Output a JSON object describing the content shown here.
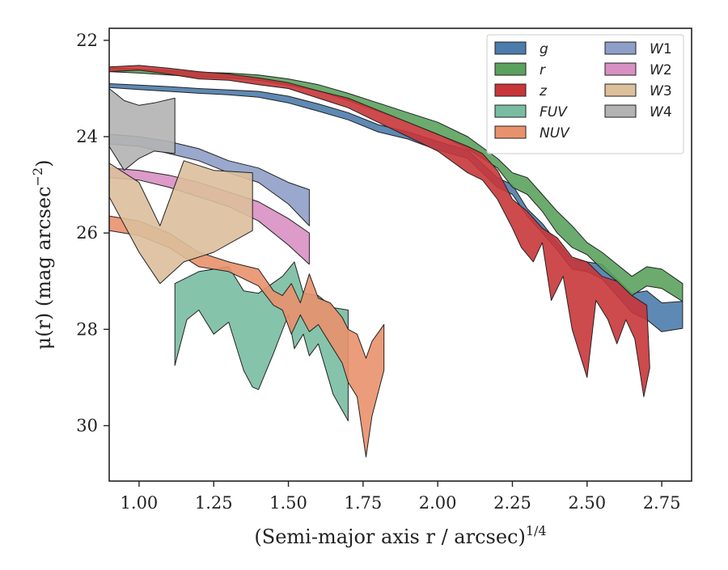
{
  "chart_data": {
    "type": "area",
    "xlabel": "(Semi-major axis r / arcsec)",
    "xlabel_sup": "1/4",
    "ylabel": "μ(r) (mag arcsec",
    "ylabel_sup": "−2",
    "ylabel_close": ")",
    "xlim": [
      0.9,
      2.85
    ],
    "ylim": [
      31.15,
      21.75
    ],
    "y_inverted": true,
    "xticks": [
      1.0,
      1.25,
      1.5,
      1.75,
      2.0,
      2.25,
      2.5,
      2.75
    ],
    "xtick_labels": [
      "1.00",
      "1.25",
      "1.50",
      "1.75",
      "2.00",
      "2.25",
      "2.50",
      "2.75"
    ],
    "yticks": [
      22,
      24,
      26,
      28,
      30
    ],
    "ytick_labels": [
      "22",
      "24",
      "26",
      "28",
      "30"
    ],
    "grid": false,
    "legend": {
      "placement": "top-right",
      "columns": 2
    },
    "series": [
      {
        "name": "g",
        "label_main": "g",
        "label_sub": "",
        "color": "#4c7cac",
        "upper": [
          [
            0.9,
            22.9
          ],
          [
            1.0,
            22.93
          ],
          [
            1.1,
            22.96
          ],
          [
            1.2,
            23.0
          ],
          [
            1.3,
            23.03
          ],
          [
            1.4,
            23.06
          ],
          [
            1.5,
            23.16
          ],
          [
            1.6,
            23.32
          ],
          [
            1.7,
            23.5
          ],
          [
            1.8,
            23.75
          ],
          [
            1.9,
            23.9
          ],
          [
            2.0,
            24.1
          ],
          [
            2.1,
            24.28
          ],
          [
            2.2,
            24.85
          ],
          [
            2.25,
            25.0
          ],
          [
            2.3,
            25.5
          ],
          [
            2.35,
            25.8
          ],
          [
            2.4,
            26.2
          ],
          [
            2.45,
            26.55
          ],
          [
            2.5,
            26.6
          ],
          [
            2.55,
            26.65
          ],
          [
            2.6,
            26.95
          ],
          [
            2.65,
            27.25
          ],
          [
            2.7,
            27.2
          ],
          [
            2.75,
            27.45
          ],
          [
            2.82,
            27.42
          ]
        ],
        "lower": [
          [
            0.9,
            22.98
          ],
          [
            1.0,
            23.02
          ],
          [
            1.1,
            23.06
          ],
          [
            1.2,
            23.1
          ],
          [
            1.3,
            23.13
          ],
          [
            1.4,
            23.18
          ],
          [
            1.5,
            23.3
          ],
          [
            1.6,
            23.47
          ],
          [
            1.7,
            23.65
          ],
          [
            1.8,
            23.9
          ],
          [
            1.9,
            24.05
          ],
          [
            2.0,
            24.28
          ],
          [
            2.1,
            24.45
          ],
          [
            2.2,
            25.05
          ],
          [
            2.25,
            25.2
          ],
          [
            2.3,
            25.65
          ],
          [
            2.35,
            26.0
          ],
          [
            2.4,
            26.35
          ],
          [
            2.45,
            26.75
          ],
          [
            2.5,
            26.8
          ],
          [
            2.55,
            26.95
          ],
          [
            2.6,
            27.3
          ],
          [
            2.65,
            27.65
          ],
          [
            2.7,
            27.8
          ],
          [
            2.75,
            28.05
          ],
          [
            2.82,
            27.98
          ]
        ]
      },
      {
        "name": "r",
        "label_main": "r",
        "label_sub": "",
        "color": "#5ba25e",
        "upper": [
          [
            0.9,
            22.57
          ],
          [
            1.0,
            22.6
          ],
          [
            1.1,
            22.63
          ],
          [
            1.2,
            22.66
          ],
          [
            1.3,
            22.68
          ],
          [
            1.4,
            22.72
          ],
          [
            1.5,
            22.8
          ],
          [
            1.6,
            22.92
          ],
          [
            1.7,
            23.1
          ],
          [
            1.8,
            23.3
          ],
          [
            1.9,
            23.5
          ],
          [
            2.0,
            23.7
          ],
          [
            2.1,
            24.0
          ],
          [
            2.2,
            24.45
          ],
          [
            2.25,
            24.75
          ],
          [
            2.3,
            24.85
          ],
          [
            2.35,
            25.2
          ],
          [
            2.4,
            25.55
          ],
          [
            2.45,
            25.85
          ],
          [
            2.5,
            26.2
          ],
          [
            2.55,
            26.4
          ],
          [
            2.6,
            26.65
          ],
          [
            2.65,
            26.9
          ],
          [
            2.7,
            26.7
          ],
          [
            2.75,
            26.75
          ],
          [
            2.82,
            27.05
          ]
        ],
        "lower": [
          [
            0.9,
            22.65
          ],
          [
            1.0,
            22.68
          ],
          [
            1.1,
            22.72
          ],
          [
            1.2,
            22.76
          ],
          [
            1.3,
            22.78
          ],
          [
            1.4,
            22.83
          ],
          [
            1.5,
            22.93
          ],
          [
            1.6,
            23.05
          ],
          [
            1.7,
            23.25
          ],
          [
            1.8,
            23.47
          ],
          [
            1.9,
            23.7
          ],
          [
            2.0,
            23.95
          ],
          [
            2.1,
            24.25
          ],
          [
            2.2,
            24.65
          ],
          [
            2.25,
            25.05
          ],
          [
            2.3,
            25.2
          ],
          [
            2.35,
            25.55
          ],
          [
            2.4,
            26.0
          ],
          [
            2.45,
            26.3
          ],
          [
            2.5,
            26.45
          ],
          [
            2.55,
            26.75
          ],
          [
            2.6,
            27.0
          ],
          [
            2.65,
            27.3
          ],
          [
            2.7,
            27.1
          ],
          [
            2.75,
            27.15
          ],
          [
            2.82,
            27.42
          ]
        ]
      },
      {
        "name": "z",
        "label_main": "z",
        "label_sub": "",
        "color": "#c8363a",
        "upper": [
          [
            0.9,
            22.55
          ],
          [
            1.0,
            22.52
          ],
          [
            1.1,
            22.58
          ],
          [
            1.2,
            22.65
          ],
          [
            1.3,
            22.7
          ],
          [
            1.4,
            22.78
          ],
          [
            1.5,
            22.88
          ],
          [
            1.6,
            23.05
          ],
          [
            1.7,
            23.2
          ],
          [
            1.8,
            23.45
          ],
          [
            1.9,
            23.7
          ],
          [
            2.0,
            23.95
          ],
          [
            2.1,
            24.2
          ],
          [
            2.15,
            24.35
          ],
          [
            2.2,
            24.7
          ],
          [
            2.25,
            25.3
          ],
          [
            2.3,
            25.55
          ],
          [
            2.35,
            25.9
          ],
          [
            2.4,
            26.1
          ],
          [
            2.45,
            26.5
          ],
          [
            2.5,
            26.6
          ],
          [
            2.55,
            26.9
          ],
          [
            2.6,
            27.0
          ],
          [
            2.65,
            27.3
          ],
          [
            2.7,
            27.5
          ]
        ],
        "lower": [
          [
            0.9,
            22.65
          ],
          [
            1.0,
            22.62
          ],
          [
            1.1,
            22.7
          ],
          [
            1.2,
            22.8
          ],
          [
            1.3,
            22.83
          ],
          [
            1.4,
            22.92
          ],
          [
            1.5,
            23.0
          ],
          [
            1.6,
            23.2
          ],
          [
            1.7,
            23.4
          ],
          [
            1.8,
            23.7
          ],
          [
            1.9,
            24.0
          ],
          [
            2.0,
            24.3
          ],
          [
            2.1,
            24.75
          ],
          [
            2.15,
            24.9
          ],
          [
            2.2,
            25.3
          ],
          [
            2.25,
            25.9
          ],
          [
            2.28,
            26.3
          ],
          [
            2.32,
            26.6
          ],
          [
            2.35,
            26.2
          ],
          [
            2.38,
            27.4
          ],
          [
            2.42,
            26.9
          ],
          [
            2.45,
            28.0
          ],
          [
            2.48,
            28.6
          ],
          [
            2.5,
            29.0
          ],
          [
            2.53,
            27.4
          ],
          [
            2.57,
            27.8
          ],
          [
            2.6,
            28.3
          ],
          [
            2.63,
            27.8
          ],
          [
            2.66,
            28.2
          ],
          [
            2.69,
            29.4
          ],
          [
            2.71,
            28.8
          ]
        ]
      },
      {
        "name": "FUV",
        "label_main": "FUV",
        "label_sub": "",
        "color": "#79bca2",
        "upper": [
          [
            1.12,
            27.05
          ],
          [
            1.2,
            26.8
          ],
          [
            1.3,
            26.7
          ],
          [
            1.35,
            27.2
          ],
          [
            1.4,
            27.25
          ],
          [
            1.48,
            26.9
          ],
          [
            1.52,
            26.6
          ],
          [
            1.55,
            27.25
          ],
          [
            1.6,
            27.3
          ],
          [
            1.65,
            27.55
          ],
          [
            1.7,
            27.6
          ]
        ],
        "lower": [
          [
            1.12,
            28.75
          ],
          [
            1.16,
            27.8
          ],
          [
            1.2,
            27.6
          ],
          [
            1.25,
            28.1
          ],
          [
            1.3,
            27.85
          ],
          [
            1.35,
            28.85
          ],
          [
            1.38,
            29.2
          ],
          [
            1.4,
            29.25
          ],
          [
            1.45,
            28.5
          ],
          [
            1.5,
            27.7
          ],
          [
            1.52,
            28.4
          ],
          [
            1.55,
            28.1
          ],
          [
            1.57,
            28.55
          ],
          [
            1.6,
            28.3
          ],
          [
            1.65,
            29.35
          ],
          [
            1.7,
            29.9
          ]
        ]
      },
      {
        "name": "NUV",
        "label_main": "NUV",
        "label_sub": "",
        "color": "#e9916c",
        "upper": [
          [
            0.9,
            25.65
          ],
          [
            1.0,
            25.75
          ],
          [
            1.1,
            26.0
          ],
          [
            1.2,
            26.4
          ],
          [
            1.3,
            26.6
          ],
          [
            1.4,
            26.75
          ],
          [
            1.45,
            27.2
          ],
          [
            1.48,
            27.3
          ],
          [
            1.51,
            27.05
          ],
          [
            1.54,
            27.45
          ],
          [
            1.57,
            26.85
          ],
          [
            1.6,
            27.35
          ],
          [
            1.64,
            27.45
          ],
          [
            1.68,
            27.75
          ],
          [
            1.7,
            28.0
          ],
          [
            1.73,
            28.1
          ],
          [
            1.76,
            28.6
          ],
          [
            1.78,
            28.25
          ],
          [
            1.82,
            27.9
          ]
        ],
        "lower": [
          [
            0.9,
            25.95
          ],
          [
            1.0,
            26.05
          ],
          [
            1.1,
            26.3
          ],
          [
            1.2,
            26.7
          ],
          [
            1.3,
            26.8
          ],
          [
            1.4,
            27.1
          ],
          [
            1.45,
            27.5
          ],
          [
            1.48,
            27.6
          ],
          [
            1.51,
            28.1
          ],
          [
            1.54,
            27.7
          ],
          [
            1.57,
            28.05
          ],
          [
            1.6,
            27.9
          ],
          [
            1.64,
            28.3
          ],
          [
            1.68,
            28.7
          ],
          [
            1.7,
            29.1
          ],
          [
            1.73,
            29.4
          ],
          [
            1.76,
            30.65
          ],
          [
            1.78,
            29.8
          ],
          [
            1.82,
            28.85
          ]
        ]
      },
      {
        "name": "W1",
        "label_main": "W",
        "label_sub": "1",
        "color": "#8e9fc7",
        "upper": [
          [
            0.9,
            23.95
          ],
          [
            1.0,
            24.0
          ],
          [
            1.1,
            24.1
          ],
          [
            1.2,
            24.25
          ],
          [
            1.3,
            24.5
          ],
          [
            1.4,
            24.65
          ],
          [
            1.5,
            24.95
          ],
          [
            1.57,
            25.1
          ]
        ],
        "lower": [
          [
            0.9,
            24.15
          ],
          [
            1.0,
            24.2
          ],
          [
            1.1,
            24.35
          ],
          [
            1.2,
            24.5
          ],
          [
            1.3,
            24.75
          ],
          [
            1.4,
            24.95
          ],
          [
            1.5,
            25.4
          ],
          [
            1.57,
            25.85
          ]
        ]
      },
      {
        "name": "W2",
        "label_main": "W",
        "label_sub": "2",
        "color": "#d890c2",
        "upper": [
          [
            0.9,
            24.65
          ],
          [
            1.0,
            24.7
          ],
          [
            1.1,
            24.8
          ],
          [
            1.2,
            24.95
          ],
          [
            1.3,
            25.15
          ],
          [
            1.4,
            25.35
          ],
          [
            1.5,
            25.7
          ],
          [
            1.57,
            26.0
          ]
        ],
        "lower": [
          [
            0.9,
            24.85
          ],
          [
            1.0,
            24.9
          ],
          [
            1.1,
            25.05
          ],
          [
            1.2,
            25.25
          ],
          [
            1.3,
            25.45
          ],
          [
            1.4,
            25.75
          ],
          [
            1.5,
            26.25
          ],
          [
            1.57,
            26.65
          ]
        ]
      },
      {
        "name": "W3",
        "label_main": "W",
        "label_sub": "3",
        "color": "#dcbf9b",
        "upper": [
          [
            0.9,
            24.55
          ],
          [
            1.0,
            24.95
          ],
          [
            1.07,
            25.85
          ],
          [
            1.15,
            24.5
          ],
          [
            1.25,
            24.7
          ],
          [
            1.38,
            24.75
          ]
        ],
        "lower": [
          [
            0.9,
            25.25
          ],
          [
            1.0,
            26.4
          ],
          [
            1.07,
            27.05
          ],
          [
            1.15,
            26.6
          ],
          [
            1.25,
            26.4
          ],
          [
            1.38,
            25.95
          ]
        ]
      },
      {
        "name": "W4",
        "label_main": "W",
        "label_sub": "4",
        "color": "#b3b3b3",
        "upper": [
          [
            0.9,
            23.0
          ],
          [
            0.95,
            23.25
          ],
          [
            1.0,
            23.35
          ],
          [
            1.05,
            23.3
          ],
          [
            1.12,
            23.2
          ]
        ],
        "lower": [
          [
            0.9,
            24.2
          ],
          [
            0.95,
            24.7
          ],
          [
            1.0,
            24.45
          ],
          [
            1.05,
            24.3
          ],
          [
            1.12,
            24.35
          ]
        ]
      }
    ]
  }
}
